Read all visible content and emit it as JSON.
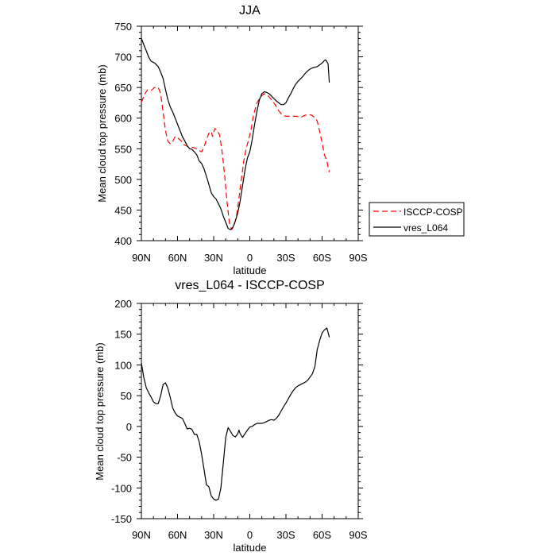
{
  "chart_data": [
    {
      "type": "line",
      "title": "JJA",
      "xlabel": "latitude",
      "ylabel": "Mean cloud top pressure (mb)",
      "xlim": [
        90,
        -90
      ],
      "ylim": [
        400,
        750
      ],
      "x_ticks": [
        90,
        60,
        30,
        0,
        -30,
        -60,
        -90
      ],
      "x_tick_labels": [
        "90N",
        "60N",
        "30N",
        "0",
        "30S",
        "60S",
        "90S"
      ],
      "y_ticks": [
        400,
        450,
        500,
        550,
        600,
        650,
        700,
        750
      ],
      "y_tick_labels": [
        "400",
        "450",
        "500",
        "550",
        "600",
        "650",
        "700",
        "750"
      ],
      "grid": false,
      "legend_position": "right",
      "series": [
        {
          "name": "ISCCP-COSP",
          "color": "#ff0000",
          "dash": "dashed",
          "points": [
            [
              90,
              626
            ],
            [
              87,
              640
            ],
            [
              85,
              646
            ],
            [
              82,
              645
            ],
            [
              79,
              650
            ],
            [
              76,
              650
            ],
            [
              74,
              640
            ],
            [
              72,
              610
            ],
            [
              70,
              580
            ],
            [
              68,
              562
            ],
            [
              66,
              558
            ],
            [
              64,
              562
            ],
            [
              62,
              570
            ],
            [
              60,
              568
            ],
            [
              57,
              563
            ],
            [
              55,
              557
            ],
            [
              53,
              555
            ],
            [
              50,
              552
            ],
            [
              47,
              552
            ],
            [
              44,
              550
            ],
            [
              42,
              547
            ],
            [
              40,
              545
            ],
            [
              38,
              553
            ],
            [
              36,
              565
            ],
            [
              34,
              575
            ],
            [
              32,
              578
            ],
            [
              31,
              570
            ],
            [
              29,
              583
            ],
            [
              27,
              580
            ],
            [
              25,
              572
            ],
            [
              23,
              545
            ],
            [
              21,
              510
            ],
            [
              19,
              465
            ],
            [
              17,
              430
            ],
            [
              15,
              418
            ],
            [
              13,
              425
            ],
            [
              11,
              440
            ],
            [
              9,
              470
            ],
            [
              7,
              500
            ],
            [
              5,
              530
            ],
            [
              3,
              550
            ],
            [
              1,
              565
            ],
            [
              -1,
              580
            ],
            [
              -3,
              605
            ],
            [
              -6,
              625
            ],
            [
              -9,
              635
            ],
            [
              -12,
              640
            ],
            [
              -15,
              637
            ],
            [
              -18,
              630
            ],
            [
              -21,
              622
            ],
            [
              -24,
              612
            ],
            [
              -27,
              605
            ],
            [
              -30,
              603
            ],
            [
              -33,
              603
            ],
            [
              -36,
              603
            ],
            [
              -39,
              603
            ],
            [
              -42,
              601
            ],
            [
              -45,
              604
            ],
            [
              -48,
              606
            ],
            [
              -51,
              605
            ],
            [
              -54,
              601
            ],
            [
              -56,
              595
            ],
            [
              -58,
              578
            ],
            [
              -60,
              560
            ],
            [
              -62,
              540
            ],
            [
              -64,
              530
            ],
            [
              -65,
              520
            ],
            [
              -66,
              512
            ]
          ]
        },
        {
          "name": "vres_L064",
          "color": "#000000",
          "dash": "solid",
          "points": [
            [
              90,
              730
            ],
            [
              88,
              720
            ],
            [
              86,
              710
            ],
            [
              84,
              700
            ],
            [
              82,
              693
            ],
            [
              79,
              690
            ],
            [
              76,
              684
            ],
            [
              74,
              675
            ],
            [
              72,
              665
            ],
            [
              70,
              647
            ],
            [
              68,
              630
            ],
            [
              66,
              618
            ],
            [
              64,
              610
            ],
            [
              62,
              600
            ],
            [
              60,
              590
            ],
            [
              58,
              580
            ],
            [
              56,
              570
            ],
            [
              54,
              563
            ],
            [
              52,
              555
            ],
            [
              50,
              550
            ],
            [
              48,
              549
            ],
            [
              46,
              545
            ],
            [
              44,
              540
            ],
            [
              42,
              530
            ],
            [
              40,
              526
            ],
            [
              38,
              517
            ],
            [
              36,
              505
            ],
            [
              34,
              492
            ],
            [
              32,
              478
            ],
            [
              30,
              472
            ],
            [
              28,
              468
            ],
            [
              26,
              460
            ],
            [
              24,
              452
            ],
            [
              22,
              440
            ],
            [
              20,
              430
            ],
            [
              18,
              420
            ],
            [
              16,
              418
            ],
            [
              14,
              422
            ],
            [
              12,
              432
            ],
            [
              10,
              445
            ],
            [
              8,
              465
            ],
            [
              6,
              490
            ],
            [
              4,
              515
            ],
            [
              2,
              535
            ],
            [
              0,
              545
            ],
            [
              -2,
              565
            ],
            [
              -4,
              590
            ],
            [
              -6,
              612
            ],
            [
              -8,
              630
            ],
            [
              -10,
              640
            ],
            [
              -12,
              643
            ],
            [
              -14,
              642
            ],
            [
              -16,
              640
            ],
            [
              -18,
              636
            ],
            [
              -20,
              632
            ],
            [
              -22,
              628
            ],
            [
              -24,
              625
            ],
            [
              -26,
              622
            ],
            [
              -28,
              622
            ],
            [
              -30,
              625
            ],
            [
              -32,
              633
            ],
            [
              -34,
              640
            ],
            [
              -36,
              648
            ],
            [
              -38,
              655
            ],
            [
              -40,
              660
            ],
            [
              -42,
              664
            ],
            [
              -44,
              668
            ],
            [
              -46,
              673
            ],
            [
              -48,
              677
            ],
            [
              -50,
              680
            ],
            [
              -52,
              682
            ],
            [
              -54,
              683
            ],
            [
              -56,
              684
            ],
            [
              -58,
              687
            ],
            [
              -60,
              690
            ],
            [
              -62,
              694
            ],
            [
              -63,
              695
            ],
            [
              -64,
              692
            ],
            [
              -65,
              688
            ],
            [
              -66,
              658
            ]
          ]
        }
      ]
    },
    {
      "type": "line",
      "title": "vres_L064 - ISCCP-COSP",
      "xlabel": "latitude",
      "ylabel": "Mean cloud top pressure (mb)",
      "xlim": [
        90,
        -90
      ],
      "ylim": [
        -150,
        200
      ],
      "x_ticks": [
        90,
        60,
        30,
        0,
        -30,
        -60,
        -90
      ],
      "x_tick_labels": [
        "90N",
        "60N",
        "30N",
        "0",
        "30S",
        "60S",
        "90S"
      ],
      "y_ticks": [
        -150,
        -100,
        -50,
        0,
        50,
        100,
        150,
        200
      ],
      "y_tick_labels": [
        "-150",
        "-100",
        "-50",
        "0",
        "50",
        "100",
        "150",
        "200"
      ],
      "grid": false,
      "series": [
        {
          "color": "#000000",
          "dash": "solid",
          "points": [
            [
              90,
              103
            ],
            [
              88,
              80
            ],
            [
              86,
              63
            ],
            [
              84,
              55
            ],
            [
              82,
              48
            ],
            [
              80,
              40
            ],
            [
              78,
              37
            ],
            [
              76,
              37
            ],
            [
              74,
              50
            ],
            [
              72,
              68
            ],
            [
              70,
              71
            ],
            [
              68,
              62
            ],
            [
              66,
              47
            ],
            [
              64,
              30
            ],
            [
              62,
              22
            ],
            [
              60,
              17
            ],
            [
              58,
              15
            ],
            [
              56,
              13
            ],
            [
              54,
              5
            ],
            [
              52,
              -4
            ],
            [
              50,
              -3
            ],
            [
              48,
              -5
            ],
            [
              46,
              -13
            ],
            [
              44,
              -13
            ],
            [
              42,
              -25
            ],
            [
              40,
              -45
            ],
            [
              38,
              -70
            ],
            [
              36,
              -95
            ],
            [
              34,
              -98
            ],
            [
              32,
              -113
            ],
            [
              30,
              -118
            ],
            [
              28,
              -120
            ],
            [
              26,
              -118
            ],
            [
              24,
              -100
            ],
            [
              22,
              -60
            ],
            [
              20,
              -18
            ],
            [
              18,
              -2
            ],
            [
              16,
              -8
            ],
            [
              14,
              -15
            ],
            [
              12,
              -17
            ],
            [
              10,
              -12
            ],
            [
              9,
              -6
            ],
            [
              8,
              -12
            ],
            [
              6,
              -18
            ],
            [
              4,
              -12
            ],
            [
              2,
              -6
            ],
            [
              0,
              -1
            ],
            [
              -2,
              0
            ],
            [
              -4,
              3
            ],
            [
              -6,
              5
            ],
            [
              -8,
              5
            ],
            [
              -10,
              5
            ],
            [
              -12,
              6
            ],
            [
              -14,
              8
            ],
            [
              -16,
              10
            ],
            [
              -18,
              11
            ],
            [
              -20,
              10
            ],
            [
              -22,
              13
            ],
            [
              -24,
              18
            ],
            [
              -26,
              25
            ],
            [
              -28,
              32
            ],
            [
              -30,
              38
            ],
            [
              -32,
              45
            ],
            [
              -34,
              52
            ],
            [
              -36,
              58
            ],
            [
              -38,
              63
            ],
            [
              -40,
              66
            ],
            [
              -42,
              68
            ],
            [
              -44,
              70
            ],
            [
              -46,
              72
            ],
            [
              -48,
              75
            ],
            [
              -50,
              80
            ],
            [
              -52,
              86
            ],
            [
              -54,
              97
            ],
            [
              -56,
              125
            ],
            [
              -58,
              140
            ],
            [
              -60,
              152
            ],
            [
              -62,
              157
            ],
            [
              -64,
              160
            ],
            [
              -66,
              145
            ]
          ]
        }
      ]
    }
  ]
}
